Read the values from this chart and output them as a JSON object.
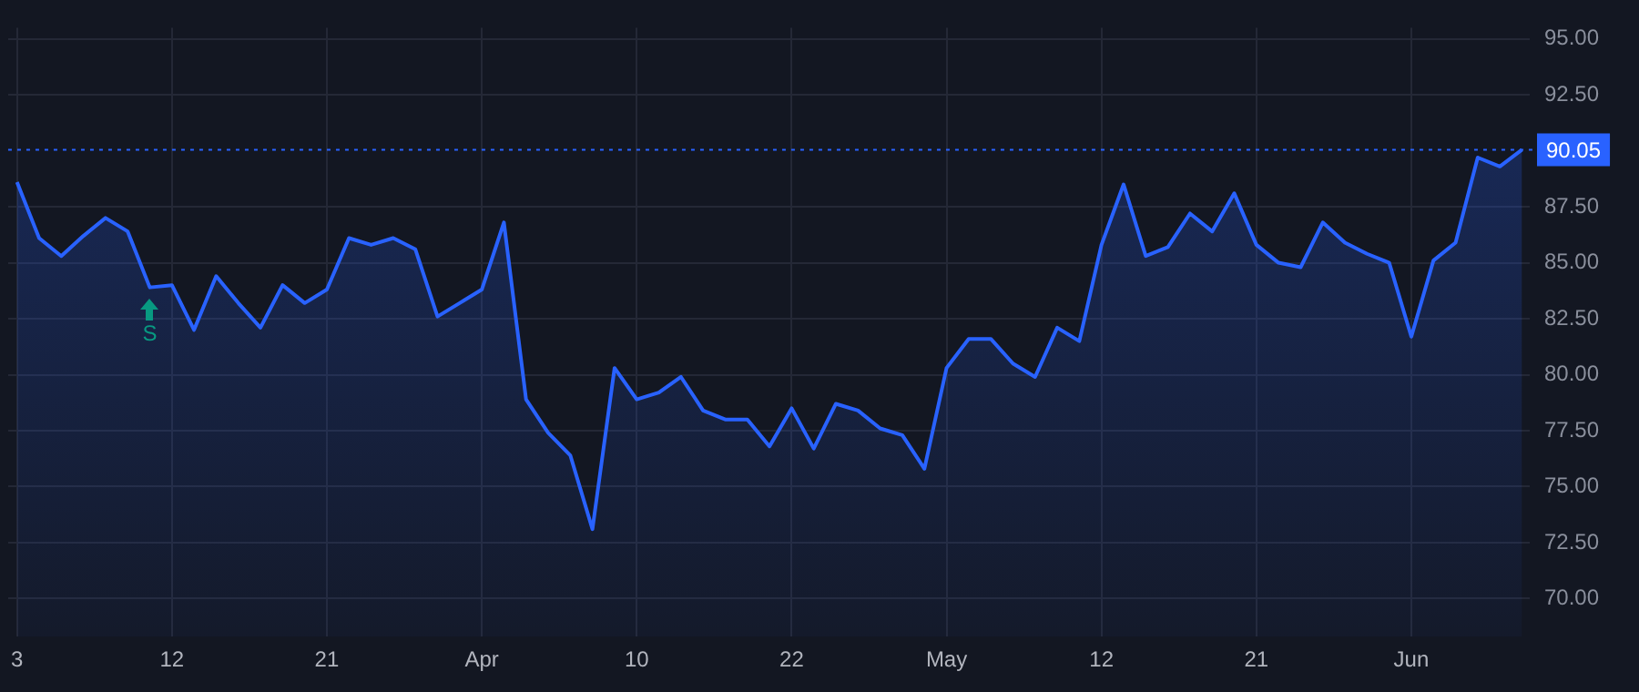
{
  "chart_data": {
    "type": "area",
    "categories": [
      "3",
      null,
      null,
      null,
      null,
      null,
      null,
      "12",
      null,
      null,
      null,
      null,
      null,
      null,
      "21",
      null,
      null,
      null,
      null,
      null,
      null,
      "Apr",
      null,
      null,
      null,
      null,
      null,
      null,
      "10",
      null,
      null,
      null,
      null,
      null,
      null,
      "22",
      null,
      null,
      null,
      null,
      null,
      null,
      "May",
      null,
      null,
      null,
      null,
      null,
      null,
      "12",
      null,
      null,
      null,
      null,
      null,
      null,
      "21",
      null,
      null,
      null,
      null,
      null,
      null,
      "Jun",
      null,
      null,
      null,
      null,
      null
    ],
    "series": [
      {
        "color": "#2962ff",
        "values": [
          88.6,
          86.1,
          85.3,
          86.2,
          87.0,
          86.4,
          83.9,
          84.0,
          82.0,
          84.4,
          83.2,
          82.1,
          84.0,
          83.2,
          83.8,
          86.1,
          85.8,
          86.1,
          85.6,
          82.6,
          83.2,
          83.8,
          86.8,
          78.9,
          77.4,
          76.4,
          73.1,
          80.3,
          78.9,
          79.2,
          79.9,
          78.4,
          78.0,
          78.0,
          76.8,
          78.5,
          76.7,
          78.7,
          78.4,
          77.6,
          77.3,
          75.8,
          80.3,
          81.6,
          81.6,
          80.5,
          79.9,
          82.1,
          81.5,
          85.8,
          88.5,
          85.3,
          85.7,
          87.2,
          86.4,
          88.1,
          85.8,
          85.0,
          84.8,
          86.8,
          85.9,
          85.4,
          85.0,
          81.7,
          85.1,
          85.9,
          89.7,
          89.3,
          90.05
        ]
      }
    ],
    "ylim": [
      68.3,
      95.5
    ],
    "yticks": [
      {
        "value": 70,
        "label": "70.00"
      },
      {
        "value": 72.5,
        "label": "72.50"
      },
      {
        "value": 75,
        "label": "75.00"
      },
      {
        "value": 77.5,
        "label": "77.50"
      },
      {
        "value": 80,
        "label": "80.00"
      },
      {
        "value": 82.5,
        "label": "82.50"
      },
      {
        "value": 85,
        "label": "85.00"
      },
      {
        "value": 87.5,
        "label": "87.50"
      },
      {
        "value": 92.5,
        "label": "92.50"
      },
      {
        "value": 95,
        "label": "95.00"
      }
    ],
    "ref_lines": [
      {
        "axis": "y",
        "value": 90.05,
        "label": "90.05",
        "color": "#2962ff",
        "line_style": "dotted"
      }
    ],
    "annotations": [
      {
        "text": "S",
        "y": 83.9
      }
    ],
    "grid": true,
    "legend": false,
    "marker": "none",
    "line_style": "solid"
  }
}
